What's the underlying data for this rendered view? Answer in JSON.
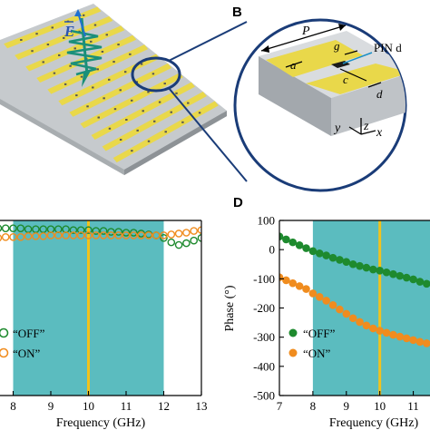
{
  "panels": {
    "b_label": "B",
    "d_label": "D"
  },
  "panel_a": {
    "field_symbol": "E"
  },
  "panel_b": {
    "labels": {
      "P": "P",
      "a": "a",
      "g": "g",
      "c": "c",
      "d": "d",
      "pin": "PIN d",
      "x": "x",
      "y": "y",
      "z": "z"
    }
  },
  "chart_c": {
    "type": "scatter",
    "xlabel": "Frequency (GHz)",
    "ylabel": "",
    "xlim": [
      7,
      13
    ],
    "ylim": [
      0,
      1
    ],
    "x_ticks": [
      "8",
      "9",
      "10",
      "11",
      "12",
      "13"
    ],
    "band_range": [
      8,
      12
    ],
    "marker_line_x": 10,
    "legend": {
      "off": "“OFF”",
      "on": "“ON”"
    },
    "colors": {
      "off": "#1e8a2e",
      "on": "#f08c1e",
      "band": "#5bbcbf",
      "line": "#f2c21b"
    },
    "series": [
      {
        "name": "“OFF”",
        "style": "open",
        "x": [
          7.2,
          7.4,
          7.6,
          7.8,
          8.0,
          8.2,
          8.4,
          8.6,
          8.8,
          9.0,
          9.2,
          9.4,
          9.6,
          9.8,
          10.0,
          10.2,
          10.4,
          10.6,
          10.8,
          11.0,
          11.2,
          11.4,
          11.6,
          11.8,
          12.0,
          12.2,
          12.4,
          12.6,
          12.8,
          13.0
        ],
        "y": [
          0.955,
          0.955,
          0.955,
          0.955,
          0.955,
          0.955,
          0.95,
          0.95,
          0.95,
          0.95,
          0.95,
          0.95,
          0.945,
          0.945,
          0.945,
          0.94,
          0.94,
          0.935,
          0.935,
          0.93,
          0.93,
          0.925,
          0.92,
          0.915,
          0.9,
          0.875,
          0.86,
          0.87,
          0.885,
          0.9
        ]
      },
      {
        "name": "“ON”",
        "style": "open",
        "x": [
          7.2,
          7.4,
          7.6,
          7.8,
          8.0,
          8.2,
          8.4,
          8.6,
          8.8,
          9.0,
          9.2,
          9.4,
          9.6,
          9.8,
          10.0,
          10.2,
          10.4,
          10.6,
          10.8,
          11.0,
          11.2,
          11.4,
          11.6,
          11.8,
          12.0,
          12.2,
          12.4,
          12.6,
          12.8,
          13.0
        ],
        "y": [
          0.9,
          0.9,
          0.9,
          0.905,
          0.905,
          0.905,
          0.91,
          0.91,
          0.91,
          0.915,
          0.915,
          0.915,
          0.915,
          0.915,
          0.915,
          0.915,
          0.915,
          0.915,
          0.915,
          0.915,
          0.915,
          0.915,
          0.915,
          0.915,
          0.915,
          0.92,
          0.925,
          0.93,
          0.94,
          0.945
        ]
      }
    ]
  },
  "chart_d": {
    "type": "scatter",
    "xlabel": "Frequency (GHz)",
    "ylabel": "Phase (°)",
    "xlim": [
      7,
      11.5
    ],
    "ylim": [
      -500,
      100
    ],
    "x_ticks": [
      "7",
      "8",
      "9",
      "10",
      "11"
    ],
    "y_ticks": [
      "100",
      "0",
      "-100",
      "-200",
      "-300",
      "-400",
      "-500"
    ],
    "band_range": [
      8,
      12
    ],
    "marker_line_x": 10,
    "legend": {
      "off": "“OFF”",
      "on": "“ON”"
    },
    "colors": {
      "off": "#1e8a2e",
      "on": "#f08c1e",
      "band": "#5bbcbf",
      "line": "#f2c21b"
    },
    "series": [
      {
        "name": "“OFF”",
        "style": "filled",
        "x": [
          7.0,
          7.2,
          7.4,
          7.6,
          7.8,
          8.0,
          8.2,
          8.4,
          8.6,
          8.8,
          9.0,
          9.2,
          9.4,
          9.6,
          9.8,
          10.0,
          10.2,
          10.4,
          10.6,
          10.8,
          11.0,
          11.2,
          11.4
        ],
        "y": [
          45,
          35,
          25,
          15,
          5,
          -5,
          -13,
          -20,
          -28,
          -35,
          -42,
          -50,
          -56,
          -62,
          -68,
          -72,
          -78,
          -84,
          -90,
          -96,
          -102,
          -110,
          -117
        ]
      },
      {
        "name": "“ON”",
        "style": "filled",
        "x": [
          7.0,
          7.2,
          7.4,
          7.6,
          7.8,
          8.0,
          8.2,
          8.4,
          8.6,
          8.8,
          9.0,
          9.2,
          9.4,
          9.6,
          9.8,
          10.0,
          10.2,
          10.4,
          10.6,
          10.8,
          11.0,
          11.2,
          11.4
        ],
        "y": [
          -95,
          -105,
          -115,
          -125,
          -135,
          -150,
          -162,
          -175,
          -190,
          -205,
          -220,
          -235,
          -248,
          -260,
          -270,
          -278,
          -285,
          -292,
          -298,
          -304,
          -310,
          -316,
          -321
        ]
      }
    ]
  }
}
